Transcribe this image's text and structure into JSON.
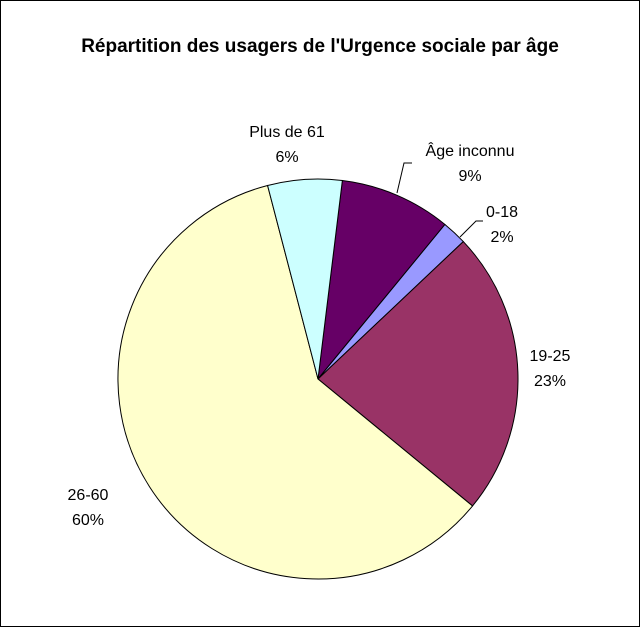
{
  "chart_data": {
    "type": "pie",
    "title": "Répartition des usagers de l'Urgence sociale par âge",
    "categories": [
      "Âge inconnu",
      "0-18",
      "19-25",
      "26-60",
      "Plus de 61"
    ],
    "values": [
      9,
      2,
      23,
      60,
      6
    ],
    "value_labels": [
      "9%",
      "2%",
      "23%",
      "60%",
      "6%"
    ],
    "colors": [
      "#660066",
      "#9999ff",
      "#993366",
      "#ffffcc",
      "#ccffff"
    ]
  }
}
